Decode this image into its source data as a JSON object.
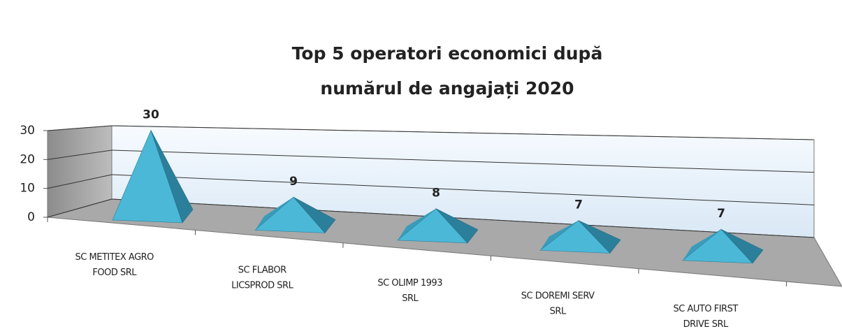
{
  "chart_data": {
    "type": "pyramid3d",
    "title": "Top 5 operatori economici după numărul de angajați 2020",
    "categories": [
      "SC METITEX AGRO FOOD SRL",
      "SC FLABOR LICSPROD SRL",
      "SC OLIMP 1993 SRL",
      "SC DOREMI SERV SRL",
      "SC AUTO FIRST DRIVE SRL"
    ],
    "values": [
      30,
      9,
      8,
      7,
      7
    ],
    "color": "#4bb8d8",
    "ylim": [
      0,
      30
    ],
    "yticks": [
      0,
      10,
      20,
      30
    ],
    "grid": true
  }
}
